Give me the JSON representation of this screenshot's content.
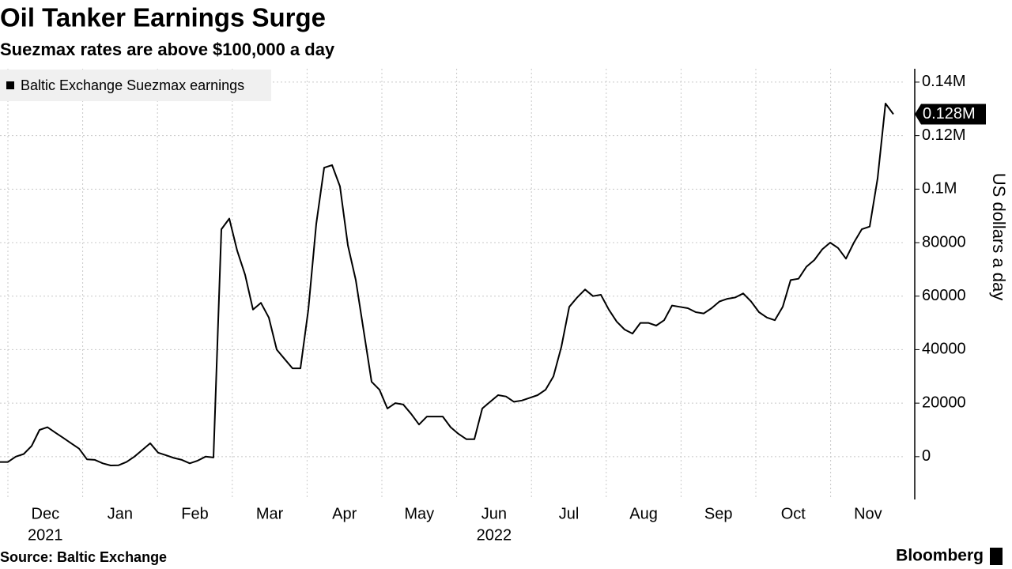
{
  "brand": "Bloomberg",
  "chart_data": {
    "type": "line",
    "title": "Oil Tanker Earnings Surge",
    "subtitle": "Suezmax rates are above $100,000 a day",
    "source": "Source: Baltic Exchange",
    "ylabel": "US dollars a day",
    "legend": "top-left",
    "grid": true,
    "xtick_labels": [
      "Dec",
      "Jan",
      "Feb",
      "Mar",
      "Apr",
      "May",
      "Jun",
      "Jul",
      "Aug",
      "Sep",
      "Oct",
      "Nov"
    ],
    "xtick_years": [
      "2021",
      null,
      null,
      null,
      null,
      null,
      "2022",
      null,
      null,
      null,
      null,
      null
    ],
    "ylim": [
      -16000,
      145000
    ],
    "yticks": [
      0,
      20000,
      40000,
      60000,
      80000,
      {
        "value": 100000,
        "label": "0.1M"
      },
      {
        "value": 120000,
        "label": "0.12M"
      },
      {
        "value": 140000,
        "label": "0.14M"
      }
    ],
    "last_value_label": {
      "value": 128000,
      "label": "0.128M"
    },
    "series": [
      {
        "name": "Baltic Exchange Suezmax earnings",
        "color": "#000000",
        "values": [
          -2000,
          -2000,
          0,
          1000,
          4000,
          10000,
          11000,
          9000,
          7000,
          5000,
          3000,
          -1000,
          -1200,
          -2500,
          -3300,
          -3200,
          -2000,
          0,
          2500,
          5000,
          1500,
          500,
          -500,
          -1200,
          -2500,
          -1500,
          0,
          -300,
          85000,
          89000,
          77000,
          68000,
          55000,
          57500,
          52000,
          40000,
          36500,
          33000,
          33000,
          55000,
          87000,
          108000,
          109000,
          101000,
          79000,
          66000,
          47000,
          28000,
          25000,
          18000,
          20000,
          19500,
          16000,
          12000,
          15000,
          15000,
          15000,
          11000,
          8500,
          6500,
          6500,
          18000,
          20500,
          23000,
          22500,
          20500,
          21000,
          22000,
          23000,
          25000,
          30000,
          41000,
          56000,
          59500,
          62500,
          60000,
          60500,
          55000,
          50500,
          47500,
          46000,
          50000,
          50000,
          49000,
          51000,
          56500,
          56000,
          55500,
          54000,
          53500,
          55500,
          58000,
          59000,
          59500,
          61000,
          58000,
          54000,
          52000,
          51000,
          56000,
          66000,
          66500,
          71000,
          73500,
          77500,
          80000,
          78000,
          74000,
          80000,
          85000,
          86000,
          104000,
          132000,
          128000
        ]
      }
    ]
  }
}
